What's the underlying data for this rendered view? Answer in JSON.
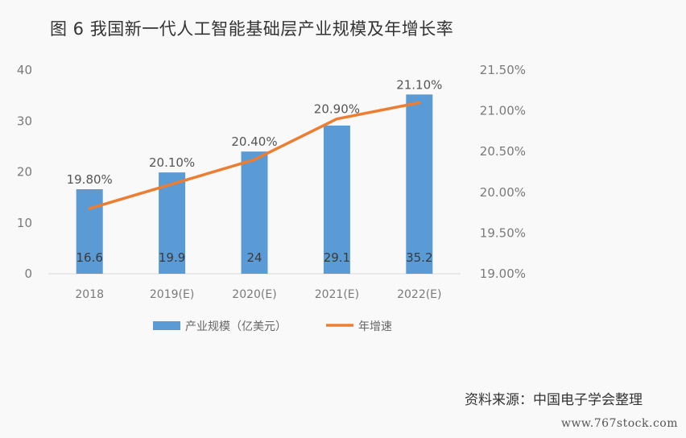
{
  "title": "图 6 我国新一代人工智能基础层产业规模及年增长率",
  "source": "资料来源：中国电子学会整理",
  "watermark": "www.767stock.com",
  "colors": {
    "bar": "#5b9bd5",
    "line": "#ed7d31",
    "axis": "#d9d9d9"
  },
  "chart_data": {
    "type": "bar",
    "categories": [
      "2018",
      "2019(E)",
      "2020(E)",
      "2021(E)",
      "2022(E)"
    ],
    "series": [
      {
        "name": "产业规模（亿美元）",
        "type": "bar",
        "axis": "left",
        "values": [
          16.6,
          19.9,
          24,
          29.1,
          35.2
        ],
        "labels": [
          "16.6",
          "19.9",
          "24",
          "29.1",
          "35.2"
        ]
      },
      {
        "name": "年增速",
        "type": "line",
        "axis": "right",
        "values": [
          19.8,
          20.1,
          20.4,
          20.9,
          21.1
        ],
        "labels": [
          "19.80%",
          "20.10%",
          "20.40%",
          "20.90%",
          "21.10%"
        ]
      }
    ],
    "left_axis": {
      "ylim": [
        0,
        40
      ],
      "ticks": [
        "0",
        "10",
        "20",
        "30",
        "40"
      ]
    },
    "right_axis": {
      "ylim": [
        19.0,
        21.5
      ],
      "ticks": [
        "19.00%",
        "19.50%",
        "20.00%",
        "20.50%",
        "21.00%",
        "21.50%"
      ]
    },
    "legend_position": "bottom",
    "grid": false
  }
}
